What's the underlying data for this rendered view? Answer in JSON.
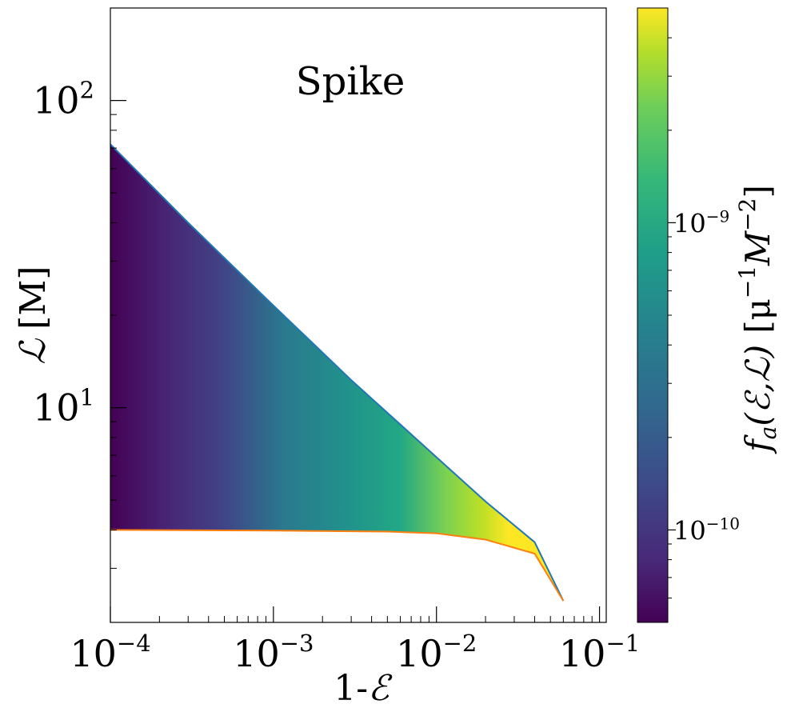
{
  "chart_data": {
    "type": "heatmap",
    "annotation": "Spike",
    "xlabel": {
      "prefix": "1-",
      "symbol": "ℰ"
    },
    "ylabel": {
      "symbol": "ℒ",
      "unit": "[M]"
    },
    "x_scale": "log",
    "y_scale": "log",
    "xlim": [
      0.0001,
      0.11
    ],
    "ylim": [
      2.0,
      200.0
    ],
    "x_ticks": [
      {
        "value": 0.0001,
        "base": "10",
        "exp": "−4"
      },
      {
        "value": 0.001,
        "base": "10",
        "exp": "−3"
      },
      {
        "value": 0.01,
        "base": "10",
        "exp": "−2"
      },
      {
        "value": 0.1,
        "base": "10",
        "exp": "−1"
      }
    ],
    "y_ticks": [
      {
        "value": 10,
        "base": "10",
        "exp": "1"
      },
      {
        "value": 100,
        "base": "10",
        "exp": "2"
      }
    ],
    "upper_boundary": {
      "color": "#1f77b4",
      "points": [
        [
          0.0001,
          72
        ],
        [
          0.0003,
          40
        ],
        [
          0.001,
          21.5
        ],
        [
          0.003,
          12.3
        ],
        [
          0.01,
          6.9
        ],
        [
          0.02,
          4.95
        ],
        [
          0.04,
          3.65
        ],
        [
          0.06,
          2.35
        ]
      ]
    },
    "lower_boundary": {
      "color": "#ff7f0e",
      "points": [
        [
          0.0001,
          4.0
        ],
        [
          0.001,
          3.98
        ],
        [
          0.005,
          3.95
        ],
        [
          0.01,
          3.9
        ],
        [
          0.02,
          3.72
        ],
        [
          0.04,
          3.35
        ],
        [
          0.06,
          2.35
        ]
      ]
    },
    "colorbar": {
      "label": {
        "f": "f",
        "sub": "a",
        "args": "(ℰ,ℒ)",
        "unit": "[μ",
        "e1": "−1",
        "mid": "M",
        "e2": "−2",
        "close": "]"
      },
      "scale": "log",
      "range": [
        5e-11,
        5e-09
      ],
      "colormap": "viridis",
      "ticks": [
        {
          "value": 1e-10,
          "base": "10",
          "exp": "−10"
        },
        {
          "value": 1e-09,
          "base": "10",
          "exp": "−9"
        }
      ]
    }
  }
}
